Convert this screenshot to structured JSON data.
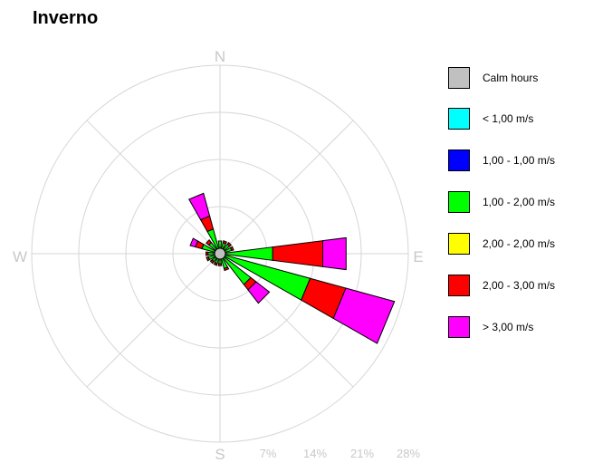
{
  "title": "Inverno",
  "chart_data": {
    "type": "wind-rose",
    "directions": [
      "N",
      "NNE",
      "NE",
      "ENE",
      "E",
      "ESE",
      "SE",
      "SSE",
      "S",
      "SSW",
      "SW",
      "WSW",
      "W",
      "WNW",
      "NW",
      "NNW"
    ],
    "cardinal_labels": [
      "N",
      "E",
      "S",
      "W"
    ],
    "radial_ticks": [
      "7%",
      "14%",
      "21%",
      "28%"
    ],
    "radial_max": 28,
    "calm_percent": 0.8,
    "bins": [
      {
        "label": "Calm hours",
        "color": "#c0c0c0"
      },
      {
        "label": "< 1,00 m/s",
        "color": "#00ffff"
      },
      {
        "label": "1,00 - 1,00 m/s",
        "color": "#0000ff"
      },
      {
        "label": "1,00 - 2,00 m/s",
        "color": "#00ff00"
      },
      {
        "label": "2,00 - 2,00 m/s",
        "color": "#ffff00"
      },
      {
        "label": "2,00 - 3,00 m/s",
        "color": "#ff0000"
      },
      {
        "label": "> 3,00 m/s",
        "color": "#ff00ff"
      }
    ],
    "sectors": [
      {
        "dir": "N",
        "values": [
          0,
          0.4,
          0,
          1.5,
          0,
          0,
          0
        ]
      },
      {
        "dir": "NNE",
        "values": [
          0,
          0.3,
          0,
          1.4,
          0,
          0.3,
          0
        ]
      },
      {
        "dir": "NE",
        "values": [
          0,
          0.3,
          0,
          1.5,
          0,
          0.3,
          0
        ]
      },
      {
        "dir": "ENE",
        "values": [
          0,
          0.3,
          0,
          1.5,
          0,
          0.3,
          0
        ]
      },
      {
        "dir": "E",
        "values": [
          0,
          0.4,
          0,
          7.5,
          0,
          7.5,
          3.5
        ]
      },
      {
        "dir": "ESE",
        "values": [
          0,
          0.4,
          0,
          13.5,
          0,
          5.5,
          7.5
        ]
      },
      {
        "dir": "SE",
        "values": [
          0,
          0.3,
          0,
          5.5,
          0,
          1.0,
          2.5
        ]
      },
      {
        "dir": "SSE",
        "values": [
          0,
          0.3,
          0,
          2.0,
          0,
          0.3,
          0
        ]
      },
      {
        "dir": "S",
        "values": [
          0,
          0.3,
          0,
          1.2,
          0,
          0.3,
          0
        ]
      },
      {
        "dir": "SSW",
        "values": [
          0,
          0.3,
          0,
          1.2,
          0,
          0.3,
          0
        ]
      },
      {
        "dir": "SW",
        "values": [
          0,
          0.3,
          0,
          1.2,
          0,
          0.3,
          0
        ]
      },
      {
        "dir": "WSW",
        "values": [
          0,
          0.3,
          0,
          1.5,
          0,
          0.3,
          0
        ]
      },
      {
        "dir": "W",
        "values": [
          0,
          0.3,
          0,
          1.5,
          0,
          0.3,
          0
        ]
      },
      {
        "dir": "WNW",
        "values": [
          0,
          0.3,
          0,
          2.5,
          0,
          1.0,
          0.8
        ]
      },
      {
        "dir": "NW",
        "values": [
          0,
          0.3,
          0,
          1.8,
          0,
          0.5,
          0
        ]
      },
      {
        "dir": "NNW",
        "values": [
          0,
          0.3,
          0,
          3.5,
          0,
          2.0,
          3.5
        ]
      }
    ]
  }
}
